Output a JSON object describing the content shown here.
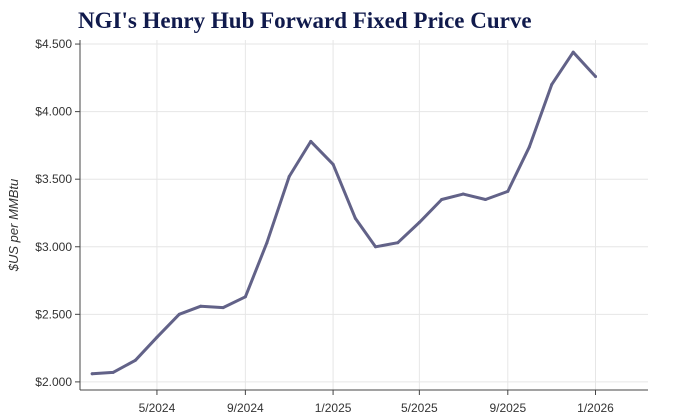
{
  "chart_data": {
    "type": "line",
    "title": "NGI's Henry Hub Forward Fixed Price Curve",
    "xlabel": "",
    "ylabel": "$US per MMBtu",
    "x_tick_labels": [
      "5/2024",
      "9/2024",
      "1/2025",
      "5/2025",
      "9/2025",
      "1/2026"
    ],
    "y_tick_labels": [
      "$2.000",
      "$2.500",
      "$3.000",
      "$3.500",
      "$4.000",
      "$4.500"
    ],
    "yticks": [
      2.0,
      2.5,
      3.0,
      3.5,
      4.0,
      4.5
    ],
    "ylim": [
      1.94,
      4.53
    ],
    "xlim": [
      "2024-01-15",
      "2026-03-15"
    ],
    "grid": true,
    "series": [
      {
        "color": "#626288",
        "points": [
          {
            "x": "2024-02-01",
            "y": 2.06
          },
          {
            "x": "2024-03-01",
            "y": 2.07
          },
          {
            "x": "2024-04-01",
            "y": 2.16
          },
          {
            "x": "2024-05-01",
            "y": 2.33
          },
          {
            "x": "2024-06-01",
            "y": 2.5
          },
          {
            "x": "2024-07-01",
            "y": 2.56
          },
          {
            "x": "2024-08-01",
            "y": 2.55
          },
          {
            "x": "2024-09-01",
            "y": 2.63
          },
          {
            "x": "2024-10-01",
            "y": 3.03
          },
          {
            "x": "2024-11-01",
            "y": 3.52
          },
          {
            "x": "2024-12-01",
            "y": 3.78
          },
          {
            "x": "2025-01-01",
            "y": 3.61
          },
          {
            "x": "2025-02-01",
            "y": 3.21
          },
          {
            "x": "2025-03-01",
            "y": 3.0
          },
          {
            "x": "2025-04-01",
            "y": 3.03
          },
          {
            "x": "2025-05-01",
            "y": 3.18
          },
          {
            "x": "2025-06-01",
            "y": 3.35
          },
          {
            "x": "2025-07-01",
            "y": 3.39
          },
          {
            "x": "2025-08-01",
            "y": 3.35
          },
          {
            "x": "2025-09-01",
            "y": 3.41
          },
          {
            "x": "2025-10-01",
            "y": 3.74
          },
          {
            "x": "2025-11-01",
            "y": 4.2
          },
          {
            "x": "2025-12-01",
            "y": 4.44
          },
          {
            "x": "2026-01-01",
            "y": 4.26
          }
        ]
      }
    ]
  }
}
